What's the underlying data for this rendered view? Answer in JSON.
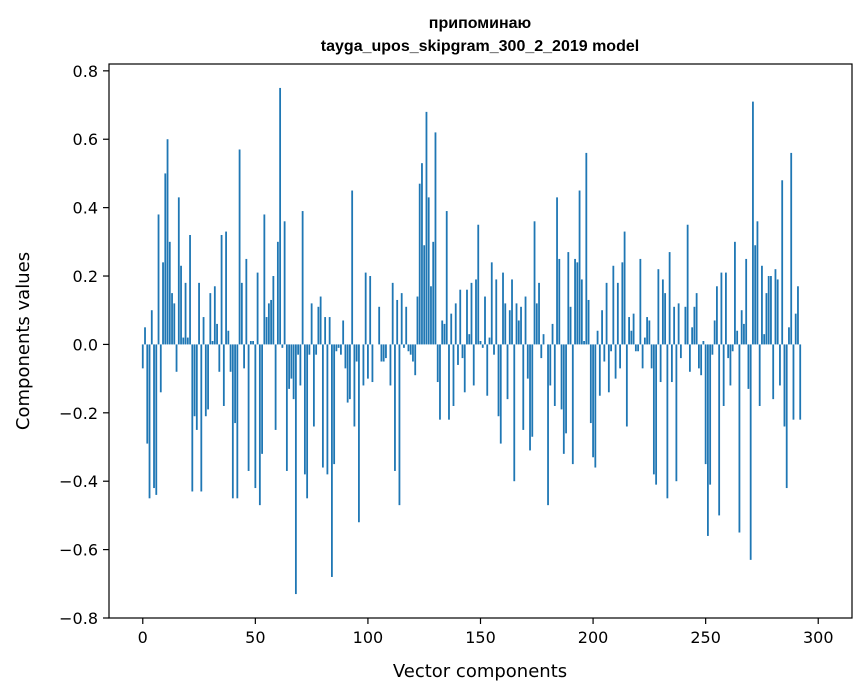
{
  "chart_data": {
    "type": "bar",
    "title": [
      "припоминаю",
      "tayga_upos_skipgram_300_2_2019 model"
    ],
    "xlabel": "Vector components",
    "ylabel": "Components values",
    "xlim": [
      -15,
      315
    ],
    "ylim": [
      -0.8,
      0.82
    ],
    "xticks": [
      0,
      50,
      100,
      150,
      200,
      250,
      300
    ],
    "yticks": [
      -0.8,
      -0.6,
      -0.4,
      -0.2,
      0.0,
      0.2,
      0.4,
      0.6,
      0.8
    ],
    "ytick_labels": [
      "−0.8",
      "−0.6",
      "−0.4",
      "−0.2",
      "0.0",
      "0.2",
      "0.4",
      "0.6",
      "0.8"
    ],
    "grid": false,
    "bar_color": "#1f77b4",
    "x": "0..299 (one bar per component index)",
    "values": [
      -0.07,
      0.05,
      -0.29,
      -0.45,
      0.1,
      -0.42,
      -0.44,
      0.38,
      -0.14,
      0.24,
      0.5,
      0.6,
      0.3,
      0.15,
      0.12,
      -0.08,
      0.43,
      0.23,
      0.02,
      0.18,
      0.02,
      0.32,
      -0.43,
      -0.21,
      -0.25,
      0.18,
      -0.43,
      0.08,
      -0.21,
      -0.19,
      0.15,
      0.01,
      0.17,
      0.06,
      -0.08,
      0.32,
      -0.18,
      0.33,
      0.04,
      -0.08,
      -0.45,
      -0.23,
      -0.45,
      0.57,
      0.18,
      -0.07,
      0.25,
      -0.37,
      0.01,
      0.01,
      -0.42,
      0.21,
      -0.47,
      -0.32,
      0.38,
      0.08,
      0.12,
      0.13,
      0.2,
      -0.25,
      0.3,
      0.75,
      -0.01,
      0.36,
      -0.37,
      -0.13,
      -0.1,
      -0.16,
      -0.73,
      -0.03,
      -0.12,
      0.39,
      -0.38,
      -0.45,
      -0.03,
      0.12,
      -0.24,
      -0.03,
      0.11,
      0.14,
      -0.36,
      0.08,
      -0.38,
      0.08,
      -0.68,
      -0.35,
      -0.02,
      -0.01,
      -0.03,
      0.07,
      -0.07,
      -0.17,
      -0.16,
      0.45,
      -0.24,
      -0.05,
      -0.52,
      0.0,
      -0.12,
      0.21,
      -0.1,
      0.2,
      -0.11,
      0.0,
      0.0,
      0.11,
      -0.05,
      -0.05,
      -0.04,
      0.0,
      -0.12,
      0.18,
      -0.37,
      0.13,
      -0.47,
      0.15,
      -0.01,
      0.11,
      -0.02,
      -0.03,
      -0.05,
      -0.09,
      0.14,
      0.47,
      0.53,
      0.29,
      0.68,
      0.43,
      0.17,
      0.3,
      0.62,
      -0.11,
      -0.22,
      0.07,
      0.06,
      0.39,
      -0.22,
      0.09,
      -0.18,
      0.12,
      -0.06,
      0.16,
      -0.04,
      -0.14,
      0.16,
      0.03,
      0.18,
      -0.12,
      0.19,
      0.35,
      0.01,
      -0.01,
      0.14,
      -0.15,
      0.02,
      0.24,
      -0.03,
      0.19,
      -0.21,
      -0.29,
      0.21,
      0.12,
      -0.16,
      0.1,
      0.19,
      -0.4,
      0.12,
      0.07,
      0.11,
      -0.25,
      0.14,
      -0.1,
      -0.31,
      -0.27,
      0.36,
      0.12,
      0.18,
      -0.04,
      0.03,
      0.0,
      -0.47,
      -0.12,
      0.06,
      -0.18,
      0.43,
      0.25,
      -0.19,
      -0.32,
      -0.26,
      0.27,
      0.11,
      -0.35,
      0.25,
      0.24,
      0.45,
      0.19,
      0.01,
      0.56,
      0.13,
      -0.23,
      -0.33,
      -0.36,
      0.04,
      -0.15,
      0.1,
      -0.05,
      0.18,
      -0.14,
      -0.02,
      0.23,
      -0.1,
      0.18,
      -0.07,
      0.24,
      0.33,
      -0.24,
      0.08,
      0.04,
      0.09,
      -0.02,
      -0.02,
      0.25,
      -0.07,
      0.02,
      0.08,
      0.07,
      -0.07,
      -0.38,
      -0.41,
      0.22,
      -0.11,
      0.19,
      0.15,
      -0.45,
      0.27,
      -0.11,
      0.11,
      -0.4,
      0.12,
      -0.04,
      0.0,
      0.11,
      0.35,
      -0.08,
      0.05,
      0.11,
      0.15,
      -0.07,
      -0.09,
      0.01,
      -0.35,
      -0.56,
      -0.41,
      -0.03,
      0.07,
      0.17,
      -0.5,
      0.21,
      -0.18,
      0.21,
      -0.04,
      -0.12,
      -0.02,
      0.3,
      0.04,
      -0.55,
      0.1,
      0.06,
      0.25,
      -0.13,
      -0.63,
      0.71,
      0.29,
      0.36,
      -0.18,
      0.23,
      0.03,
      0.15,
      0.2,
      0.2,
      -0.16,
      0.22,
      0.19,
      -0.12,
      0.48,
      -0.24,
      -0.42,
      0.05,
      0.56,
      -0.22,
      0.09,
      0.17,
      -0.22,
      0.0,
      0.0,
      0.0,
      0.0,
      0.0,
      0.0,
      0.0
    ]
  }
}
